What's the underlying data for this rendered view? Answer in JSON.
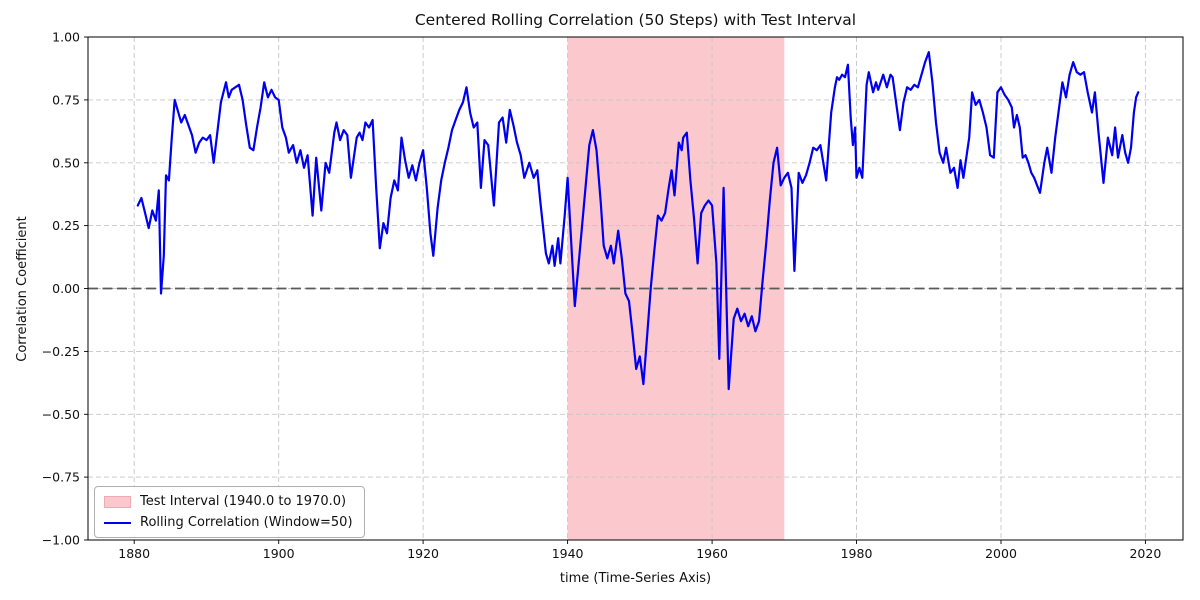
{
  "chart_data": {
    "type": "line",
    "title": "Centered Rolling Correlation (50 Steps) with Test Interval",
    "xlabel": "time (Time-Series Axis)",
    "ylabel": "Correlation Coefficient",
    "xlim": [
      1873.6,
      2025.2
    ],
    "ylim": [
      -1.0,
      1.0
    ],
    "grid": true,
    "legend": {
      "position": "lower left",
      "items": [
        {
          "label": "Test Interval (1940.0 to 1970.0)",
          "swatch": "band",
          "color": "#fbc9cd"
        },
        {
          "label": "Rolling Correlation (Window=50)",
          "swatch": "line",
          "color": "#0000f0"
        }
      ]
    },
    "xticks": [
      1880,
      1900,
      1920,
      1940,
      1960,
      1980,
      2000,
      2020
    ],
    "yticks": [
      {
        "value": -1.0,
        "label": "−1.00"
      },
      {
        "value": -0.75,
        "label": "−0.75"
      },
      {
        "value": -0.5,
        "label": "−0.50"
      },
      {
        "value": -0.25,
        "label": "−0.25"
      },
      {
        "value": 0.0,
        "label": "0.00"
      },
      {
        "value": 0.25,
        "label": "0.25"
      },
      {
        "value": 0.5,
        "label": "0.50"
      },
      {
        "value": 0.75,
        "label": "0.75"
      },
      {
        "value": 1.0,
        "label": "1.00"
      }
    ],
    "zero_line": {
      "y": 0,
      "color": "#595959",
      "style": "dashed"
    },
    "band": {
      "x0": 1940.0,
      "x1": 1970.0,
      "color": "#fbc9cd",
      "label": "Test Interval (1940.0 to 1970.0)"
    },
    "series": [
      {
        "name": "Rolling Correlation (Window=50)",
        "color": "#0000f0",
        "x": [
          1880.5,
          1881,
          1881.5,
          1882,
          1882.5,
          1883,
          1883.4,
          1883.7,
          1884.1,
          1884.4,
          1884.8,
          1885.2,
          1885.6,
          1886,
          1886.5,
          1887,
          1887.5,
          1888,
          1888.5,
          1889,
          1889.5,
          1890,
          1890.5,
          1891,
          1891.5,
          1892,
          1892.7,
          1893.1,
          1893.5,
          1894,
          1894.5,
          1895,
          1895.5,
          1896,
          1896.5,
          1897,
          1897.5,
          1898,
          1898.5,
          1899,
          1899.5,
          1900,
          1900.5,
          1901,
          1901.4,
          1902,
          1902.5,
          1903,
          1903.5,
          1904,
          1904.7,
          1905.2,
          1905.9,
          1906.5,
          1907,
          1907.7,
          1908,
          1908.5,
          1909,
          1909.5,
          1910,
          1910.8,
          1911.2,
          1911.6,
          1912,
          1912.5,
          1913,
          1913.5,
          1914,
          1914.5,
          1915,
          1915.5,
          1916,
          1916.5,
          1917,
          1917.5,
          1918,
          1918.5,
          1919,
          1919.5,
          1920,
          1920.5,
          1921,
          1921.4,
          1922,
          1922.5,
          1923,
          1923.5,
          1924,
          1924.5,
          1925,
          1925.5,
          1926,
          1926.5,
          1927,
          1927.5,
          1928,
          1928.5,
          1929,
          1929.8,
          1930.5,
          1931,
          1931.5,
          1932,
          1932.5,
          1933,
          1933.5,
          1934,
          1934.7,
          1935.3,
          1935.8,
          1936.2,
          1937,
          1937.4,
          1937.9,
          1938.2,
          1938.7,
          1939,
          1939.6,
          1940,
          1941,
          1942,
          1943,
          1943.5,
          1944,
          1944.6,
          1945,
          1945.5,
          1946,
          1946.4,
          1947,
          1947.5,
          1948,
          1948.5,
          1949,
          1949.5,
          1950,
          1950.5,
          1951,
          1951.5,
          1952,
          1952.5,
          1953,
          1953.5,
          1954,
          1954.4,
          1954.8,
          1955.4,
          1955.8,
          1956,
          1956.5,
          1957,
          1957.5,
          1958,
          1958.5,
          1959,
          1959.5,
          1960,
          1960.6,
          1961,
          1961.6,
          1962.3,
          1963,
          1963.5,
          1964,
          1964.5,
          1965,
          1965.5,
          1966,
          1966.5,
          1967,
          1967.5,
          1968,
          1968.5,
          1969,
          1969.5,
          1970,
          1970.5,
          1971,
          1971.4,
          1972,
          1972.5,
          1973,
          1973.5,
          1974,
          1974.5,
          1975,
          1975.8,
          1976.5,
          1977,
          1977.3,
          1977.6,
          1978,
          1978.4,
          1978.8,
          1979.2,
          1979.5,
          1979.8,
          1980,
          1980.4,
          1980.8,
          1981.4,
          1981.7,
          1982.3,
          1982.7,
          1983,
          1983.7,
          1984.2,
          1984.7,
          1985,
          1986,
          1986.5,
          1987,
          1987.5,
          1988,
          1988.5,
          1989,
          1989.5,
          1990,
          1990.5,
          1991,
          1991.5,
          1992,
          1992.4,
          1993,
          1993.5,
          1994,
          1994.4,
          1994.8,
          1995.6,
          1996,
          1996.5,
          1997,
          1997.5,
          1998,
          1998.5,
          1999,
          1999.5,
          2000,
          2000.5,
          2001,
          2001.5,
          2001.8,
          2002.2,
          2002.6,
          2003,
          2003.4,
          2003.8,
          2004.2,
          2004.6,
          2005,
          2005.4,
          2006,
          2006.4,
          2007,
          2007.5,
          2008,
          2008.5,
          2009,
          2009.5,
          2010,
          2010.5,
          2011,
          2011.5,
          2012,
          2012.6,
          2013,
          2013.5,
          2014.2,
          2014.8,
          2015.4,
          2015.8,
          2016.2,
          2016.8,
          2017.2,
          2017.6,
          2018,
          2018.4,
          2018.7,
          2019
        ],
        "y": [
          0.33,
          0.36,
          0.3,
          0.24,
          0.31,
          0.27,
          0.39,
          -0.02,
          0.13,
          0.45,
          0.43,
          0.6,
          0.75,
          0.71,
          0.66,
          0.69,
          0.65,
          0.61,
          0.54,
          0.58,
          0.6,
          0.59,
          0.61,
          0.5,
          0.62,
          0.74,
          0.82,
          0.76,
          0.79,
          0.8,
          0.81,
          0.75,
          0.65,
          0.56,
          0.55,
          0.64,
          0.72,
          0.82,
          0.76,
          0.79,
          0.76,
          0.75,
          0.64,
          0.6,
          0.54,
          0.57,
          0.5,
          0.55,
          0.48,
          0.53,
          0.29,
          0.52,
          0.31,
          0.5,
          0.46,
          0.62,
          0.66,
          0.59,
          0.63,
          0.61,
          0.44,
          0.6,
          0.62,
          0.59,
          0.66,
          0.64,
          0.67,
          0.4,
          0.16,
          0.26,
          0.22,
          0.36,
          0.43,
          0.39,
          0.6,
          0.51,
          0.44,
          0.49,
          0.43,
          0.5,
          0.55,
          0.4,
          0.22,
          0.13,
          0.32,
          0.43,
          0.5,
          0.56,
          0.63,
          0.67,
          0.71,
          0.74,
          0.8,
          0.7,
          0.64,
          0.66,
          0.4,
          0.59,
          0.57,
          0.33,
          0.66,
          0.68,
          0.58,
          0.71,
          0.65,
          0.58,
          0.53,
          0.44,
          0.5,
          0.44,
          0.47,
          0.35,
          0.14,
          0.1,
          0.17,
          0.09,
          0.2,
          0.1,
          0.29,
          0.44,
          -0.07,
          0.25,
          0.57,
          0.63,
          0.55,
          0.34,
          0.17,
          0.12,
          0.17,
          0.1,
          0.23,
          0.12,
          -0.02,
          -0.05,
          -0.18,
          -0.32,
          -0.27,
          -0.38,
          -0.19,
          0.0,
          0.15,
          0.29,
          0.27,
          0.3,
          0.4,
          0.47,
          0.37,
          0.58,
          0.55,
          0.6,
          0.62,
          0.43,
          0.28,
          0.1,
          0.3,
          0.33,
          0.35,
          0.33,
          0.1,
          -0.28,
          0.4,
          -0.4,
          -0.12,
          -0.08,
          -0.13,
          -0.1,
          -0.15,
          -0.11,
          -0.17,
          -0.13,
          0.03,
          0.18,
          0.35,
          0.5,
          0.56,
          0.41,
          0.44,
          0.46,
          0.4,
          0.07,
          0.46,
          0.42,
          0.45,
          0.5,
          0.56,
          0.55,
          0.57,
          0.43,
          0.7,
          0.8,
          0.84,
          0.83,
          0.85,
          0.84,
          0.89,
          0.68,
          0.57,
          0.64,
          0.44,
          0.48,
          0.44,
          0.81,
          0.86,
          0.78,
          0.82,
          0.79,
          0.85,
          0.8,
          0.85,
          0.84,
          0.63,
          0.74,
          0.8,
          0.79,
          0.81,
          0.8,
          0.85,
          0.9,
          0.94,
          0.82,
          0.66,
          0.54,
          0.5,
          0.56,
          0.46,
          0.48,
          0.4,
          0.51,
          0.44,
          0.6,
          0.78,
          0.73,
          0.75,
          0.7,
          0.64,
          0.53,
          0.52,
          0.78,
          0.8,
          0.77,
          0.75,
          0.72,
          0.64,
          0.69,
          0.64,
          0.52,
          0.53,
          0.5,
          0.46,
          0.44,
          0.41,
          0.38,
          0.5,
          0.56,
          0.46,
          0.6,
          0.71,
          0.82,
          0.76,
          0.85,
          0.9,
          0.86,
          0.85,
          0.86,
          0.78,
          0.7,
          0.78,
          0.62,
          0.42,
          0.6,
          0.53,
          0.64,
          0.52,
          0.61,
          0.54,
          0.5,
          0.56,
          0.7,
          0.76,
          0.78
        ]
      }
    ]
  }
}
